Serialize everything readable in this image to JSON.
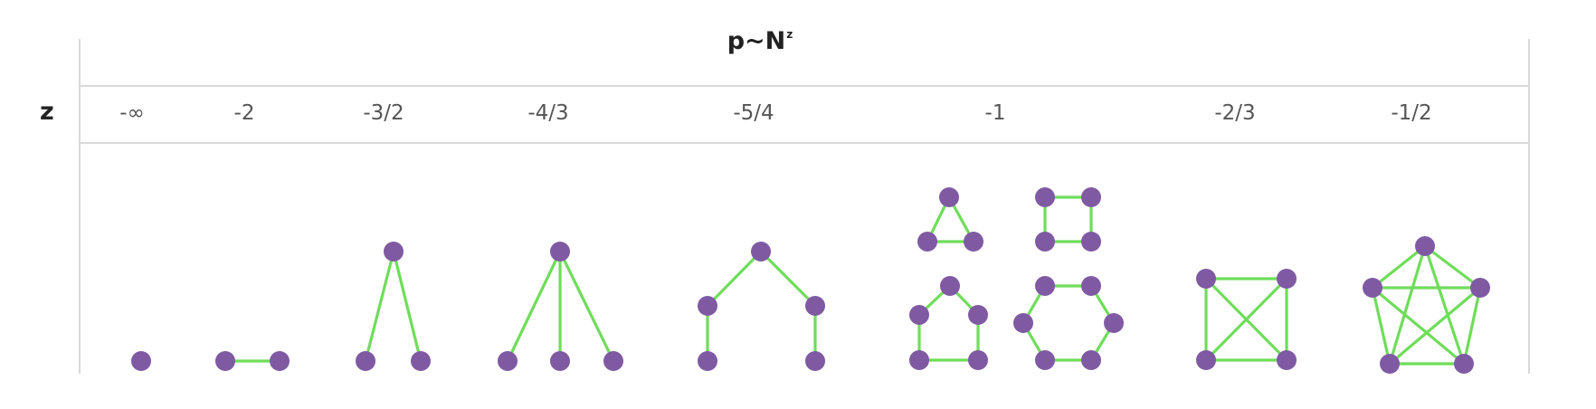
{
  "title": {
    "base": "p~N",
    "exponent": "z"
  },
  "row_label": "z",
  "columns": [
    {
      "z": "-∞"
    },
    {
      "z": "-2"
    },
    {
      "z": "-3/2"
    },
    {
      "z": "-4/3"
    },
    {
      "z": "-5/4"
    },
    {
      "z": "-1"
    },
    {
      "z": "-2/3"
    },
    {
      "z": "-1/2"
    }
  ],
  "colors": {
    "edge": "#6fdd5a",
    "node": "#7f5aa3",
    "rule": "#d9d9d9"
  }
}
